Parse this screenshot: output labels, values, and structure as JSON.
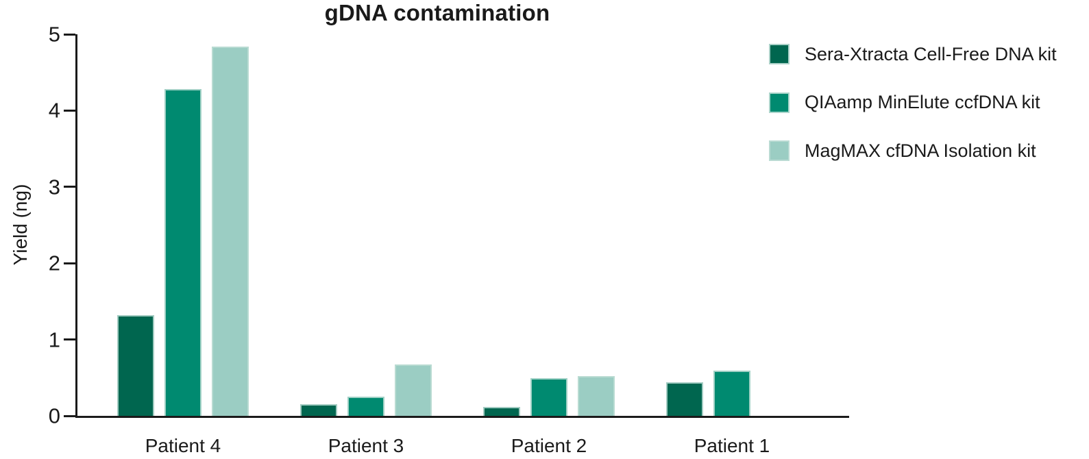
{
  "title": "gDNA contamination",
  "chart_data": {
    "type": "bar",
    "title": "gDNA contamination",
    "xlabel": "",
    "ylabel": "Yield (ng)",
    "ylim": [
      0,
      5
    ],
    "yticks": [
      0,
      1,
      2,
      3,
      4,
      5
    ],
    "grid": false,
    "legend_position": "top-right",
    "categories": [
      "Patient 4",
      "Patient 3",
      "Patient 2",
      "Patient 1"
    ],
    "series": [
      {
        "name": "Sera-Xtracta Cell-Free DNA kit",
        "color": "#00664F",
        "values": [
          1.32,
          0.15,
          0.12,
          0.44
        ]
      },
      {
        "name": "QIAamp MinElute ccfDNA kit",
        "color": "#008A70",
        "values": [
          4.28,
          0.25,
          0.49,
          0.59
        ]
      },
      {
        "name": "MagMAX cfDNA Isolation kit",
        "color": "#9BCDC3",
        "values": [
          4.84,
          0.67,
          0.52,
          0
        ]
      }
    ]
  },
  "colors": {
    "axis": "#1A1A1A",
    "text": "#1A1A1A",
    "bar_outline": "#BEDDD5",
    "background": "#FFFFFF"
  }
}
